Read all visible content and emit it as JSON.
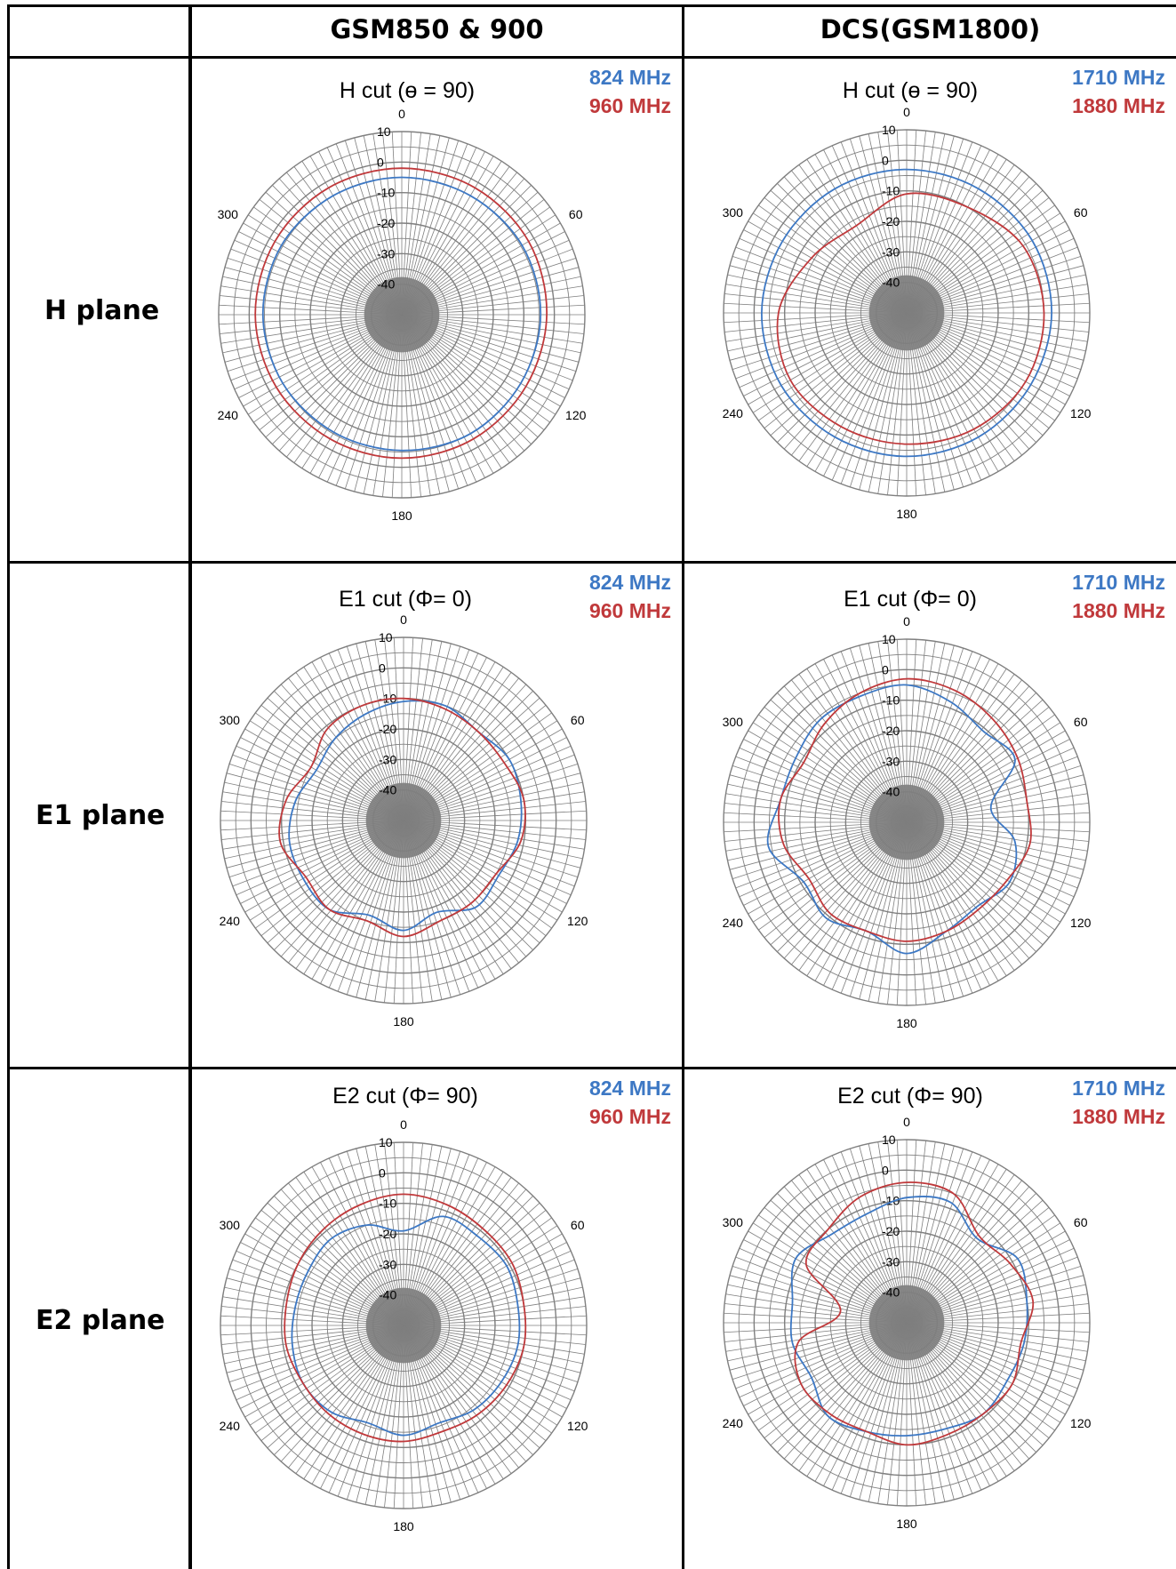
{
  "table": {
    "col_headers": [
      "GSM850 & 900",
      "DCS(GSM1800)"
    ],
    "row_headers": [
      "H plane",
      "E1 plane",
      "E2 plane"
    ]
  },
  "colors": {
    "series_a": "#3d78c4",
    "series_b": "#c0393b",
    "grid": "#7f7f7f",
    "center_fill": "#8a8a8a"
  },
  "chart_data": [
    {
      "type": "polar-line",
      "title": "H cut (ɵ = 90)",
      "radial_ticks": [
        "10",
        "0",
        "-10",
        "-20",
        "-30",
        "-40"
      ],
      "rlim": [
        -50,
        10
      ],
      "angle_ticks": [
        "0",
        "60",
        "120",
        "180",
        "240",
        "300"
      ],
      "series": [
        {
          "name": "824 MHz",
          "color": "#3d78c4",
          "angles": [
            0,
            30,
            60,
            90,
            120,
            150,
            180,
            210,
            240,
            270,
            300,
            330
          ],
          "values": [
            -5,
            -5,
            -4.5,
            -4.5,
            -5,
            -5,
            -5.5,
            -5.5,
            -5,
            -4.5,
            -4.5,
            -5
          ]
        },
        {
          "name": "960 MHz",
          "color": "#c0393b",
          "angles": [
            0,
            30,
            60,
            90,
            120,
            150,
            180,
            210,
            240,
            270,
            300,
            330
          ],
          "values": [
            -2,
            -2,
            -2,
            -2.5,
            -3,
            -3,
            -3,
            -3,
            -2.5,
            -2,
            -2,
            -2
          ]
        }
      ]
    },
    {
      "type": "polar-line",
      "title": "H cut (ɵ = 90)",
      "radial_ticks": [
        "10",
        "0",
        "-10",
        "-20",
        "-30",
        "-40"
      ],
      "rlim": [
        -50,
        10
      ],
      "angle_ticks": [
        "0",
        "60",
        "120",
        "180",
        "240",
        "300"
      ],
      "series": [
        {
          "name": "1710 MHz",
          "color": "#3d78c4",
          "angles": [
            0,
            30,
            60,
            90,
            120,
            150,
            180,
            210,
            240,
            270,
            300,
            330
          ],
          "values": [
            -3,
            -3,
            -2.5,
            -2.5,
            -3,
            -3,
            -3,
            -3,
            -2.5,
            -2.5,
            -3,
            -3
          ]
        },
        {
          "name": "1880 MHz",
          "color": "#c0393b",
          "angles": [
            0,
            30,
            60,
            90,
            120,
            150,
            180,
            210,
            240,
            270,
            300,
            330
          ],
          "values": [
            -11,
            -10,
            -6,
            -5,
            -5,
            -6,
            -7,
            -7,
            -6,
            -8,
            -14,
            -17
          ]
        }
      ]
    },
    {
      "type": "polar-line",
      "title": "E1 cut (Φ= 0)",
      "radial_ticks": [
        "10",
        "0",
        "-10",
        "-20",
        "-30",
        "-40"
      ],
      "rlim": [
        -50,
        10
      ],
      "angle_ticks": [
        "0",
        "60",
        "120",
        "180",
        "240",
        "300"
      ],
      "series": [
        {
          "name": "824 MHz",
          "color": "#3d78c4",
          "angles": [
            0,
            20,
            40,
            60,
            80,
            100,
            120,
            140,
            160,
            180,
            200,
            220,
            240,
            260,
            280,
            300,
            320,
            340
          ],
          "values": [
            -11,
            -10,
            -12,
            -10,
            -11,
            -12,
            -14,
            -13,
            -18,
            -14,
            -17,
            -12,
            -12,
            -12,
            -14,
            -17,
            -15,
            -13
          ]
        },
        {
          "name": "960 MHz",
          "color": "#c0393b",
          "angles": [
            0,
            20,
            40,
            60,
            80,
            100,
            120,
            140,
            160,
            180,
            200,
            220,
            240,
            260,
            280,
            300,
            320,
            340
          ],
          "values": [
            -10,
            -11,
            -12,
            -12,
            -10,
            -11,
            -15,
            -15,
            -15,
            -12,
            -15,
            -12,
            -13,
            -9,
            -11,
            -15,
            -11,
            -10
          ]
        }
      ]
    },
    {
      "type": "polar-line",
      "title": "E1 cut (Φ= 0)",
      "radial_ticks": [
        "10",
        "0",
        "-10",
        "-20",
        "-30",
        "-40"
      ],
      "rlim": [
        -50,
        10
      ],
      "angle_ticks": [
        "0",
        "60",
        "120",
        "180",
        "240",
        "300"
      ],
      "series": [
        {
          "name": "1710 MHz",
          "color": "#3d78c4",
          "angles": [
            0,
            20,
            40,
            60,
            80,
            100,
            120,
            140,
            160,
            180,
            200,
            220,
            240,
            260,
            280,
            300,
            320,
            340
          ],
          "values": [
            -5,
            -8,
            -11,
            -9,
            -22,
            -14,
            -11,
            -14,
            -12,
            -7,
            -12,
            -9,
            -11,
            -4,
            -8,
            -8,
            -6,
            -6
          ]
        },
        {
          "name": "1880 MHz",
          "color": "#c0393b",
          "angles": [
            0,
            20,
            40,
            60,
            80,
            100,
            120,
            140,
            160,
            180,
            200,
            220,
            240,
            260,
            280,
            300,
            320,
            340
          ],
          "values": [
            -3,
            -4,
            -6,
            -8,
            -10,
            -9,
            -12,
            -13,
            -12,
            -11,
            -12,
            -11,
            -13,
            -9,
            -8,
            -11,
            -8,
            -5
          ]
        }
      ]
    },
    {
      "type": "polar-line",
      "title": "E2 cut (Φ= 90)",
      "radial_ticks": [
        "10",
        "0",
        "-10",
        "-20",
        "-30",
        "-40"
      ],
      "rlim": [
        -50,
        10
      ],
      "angle_ticks": [
        "0",
        "60",
        "120",
        "180",
        "240",
        "300"
      ],
      "series": [
        {
          "name": "824 MHz",
          "color": "#3d78c4",
          "angles": [
            0,
            20,
            40,
            60,
            80,
            100,
            120,
            140,
            160,
            180,
            200,
            220,
            240,
            260,
            280,
            300,
            320,
            340
          ],
          "values": [
            -19,
            -12,
            -12,
            -11,
            -12,
            -12,
            -13,
            -14,
            -16,
            -14,
            -16,
            -13,
            -12,
            -13,
            -14,
            -14,
            -13,
            -15
          ]
        },
        {
          "name": "960 MHz",
          "color": "#c0393b",
          "angles": [
            0,
            20,
            40,
            60,
            80,
            100,
            120,
            140,
            160,
            180,
            200,
            220,
            240,
            260,
            280,
            300,
            320,
            340
          ],
          "values": [
            -7,
            -8,
            -9,
            -9,
            -10,
            -10,
            -11,
            -12,
            -13,
            -12,
            -12,
            -12,
            -12,
            -11,
            -11,
            -10,
            -9,
            -8
          ]
        }
      ]
    },
    {
      "type": "polar-line",
      "title": "E2 cut (Φ= 90)",
      "radial_ticks": [
        "10",
        "0",
        "-10",
        "-20",
        "-30",
        "-40"
      ],
      "rlim": [
        -50,
        10
      ],
      "angle_ticks": [
        "0",
        "60",
        "120",
        "180",
        "240",
        "300"
      ],
      "series": [
        {
          "name": "1710 MHz",
          "color": "#3d78c4",
          "angles": [
            0,
            20,
            40,
            60,
            80,
            100,
            120,
            140,
            160,
            180,
            200,
            220,
            240,
            260,
            280,
            300,
            320,
            340
          ],
          "values": [
            -9,
            -8,
            -14,
            -8,
            -10,
            -11,
            -12,
            -11,
            -13,
            -13,
            -12,
            -10,
            -14,
            -12,
            -12,
            -8,
            -12,
            -12
          ]
        },
        {
          "name": "1880 MHz",
          "color": "#c0393b",
          "angles": [
            0,
            20,
            40,
            60,
            80,
            100,
            120,
            140,
            160,
            180,
            200,
            220,
            240,
            260,
            280,
            300,
            320,
            340
          ],
          "values": [
            -4,
            -5,
            -13,
            -11,
            -8,
            -12,
            -10,
            -11,
            -11,
            -10,
            -12,
            -11,
            -10,
            -14,
            -28,
            -12,
            -10,
            -6
          ]
        }
      ]
    }
  ]
}
